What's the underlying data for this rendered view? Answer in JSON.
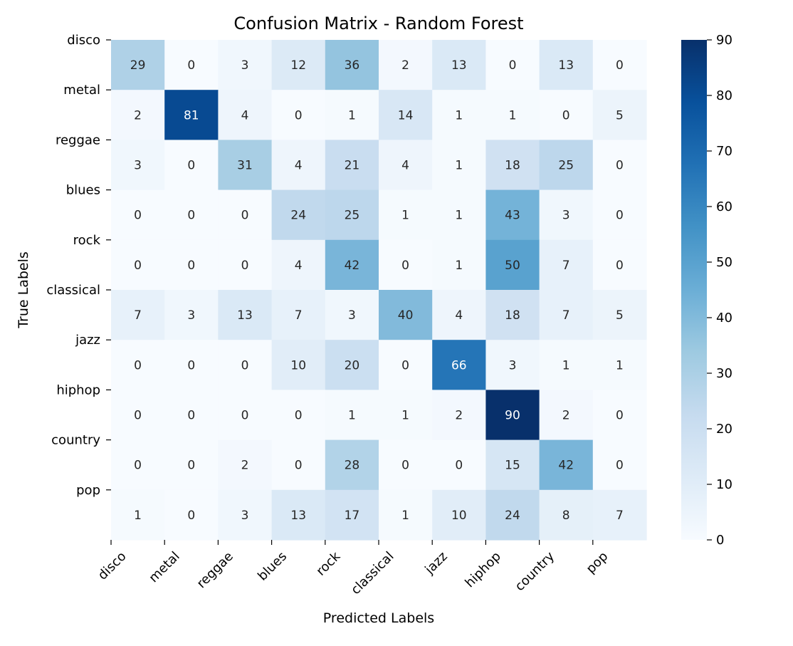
{
  "chart_data": {
    "type": "heatmap",
    "title": "Confusion Matrix - Random Forest",
    "xlabel": "Predicted Labels",
    "ylabel": "True Labels",
    "x_categories": [
      "disco",
      "metal",
      "reggae",
      "blues",
      "rock",
      "classical",
      "jazz",
      "hiphop",
      "country",
      "pop"
    ],
    "y_categories": [
      "disco",
      "metal",
      "reggae",
      "blues",
      "rock",
      "classical",
      "jazz",
      "hiphop",
      "country",
      "pop"
    ],
    "values": [
      [
        29,
        0,
        3,
        12,
        36,
        2,
        13,
        0,
        13,
        0
      ],
      [
        2,
        81,
        4,
        0,
        1,
        14,
        1,
        1,
        0,
        5
      ],
      [
        3,
        0,
        31,
        4,
        21,
        4,
        1,
        18,
        25,
        0
      ],
      [
        0,
        0,
        0,
        24,
        25,
        1,
        1,
        43,
        3,
        0
      ],
      [
        0,
        0,
        0,
        4,
        42,
        0,
        1,
        50,
        7,
        0
      ],
      [
        7,
        3,
        13,
        7,
        3,
        40,
        4,
        18,
        7,
        5
      ],
      [
        0,
        0,
        0,
        10,
        20,
        0,
        66,
        3,
        1,
        1
      ],
      [
        0,
        0,
        0,
        0,
        1,
        1,
        2,
        90,
        2,
        0
      ],
      [
        0,
        0,
        2,
        0,
        28,
        0,
        0,
        15,
        42,
        0
      ],
      [
        1,
        0,
        3,
        13,
        17,
        1,
        10,
        24,
        8,
        7
      ]
    ],
    "colorbar": {
      "min": 0,
      "max": 90,
      "ticks": [
        0,
        10,
        20,
        30,
        40,
        50,
        60,
        70,
        80,
        90
      ],
      "colormap": "Blues"
    }
  }
}
